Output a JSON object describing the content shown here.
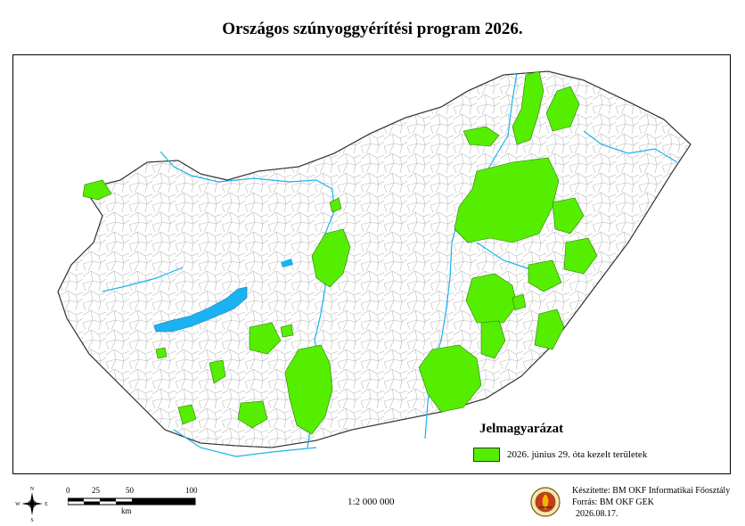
{
  "title": "Országos szúnyoggyérítési program 2026.",
  "legend": {
    "title": "Jelmagyarázat",
    "items": [
      {
        "label": "2026. június 29. óta kezelt területek",
        "color": "#55ee00"
      }
    ]
  },
  "scale_bar": {
    "ticks": [
      "0",
      "25",
      "50",
      "100"
    ],
    "unit": "km"
  },
  "ratio": "1:2 000 000",
  "compass": {
    "n": "N",
    "s": "S",
    "e": "E",
    "w": "W"
  },
  "credits": {
    "made_by": "Készítette: BM OKF Informatikai Főosztály",
    "source": "Forrás: BM OKF GEK",
    "date": "2026.08.17."
  },
  "colors": {
    "treated": "#55ee00",
    "water": "#1ab2f0",
    "border": "#333333",
    "grid": "#bbbbbb"
  },
  "icons": [
    "compass-rose-icon",
    "agency-emblem-icon"
  ]
}
